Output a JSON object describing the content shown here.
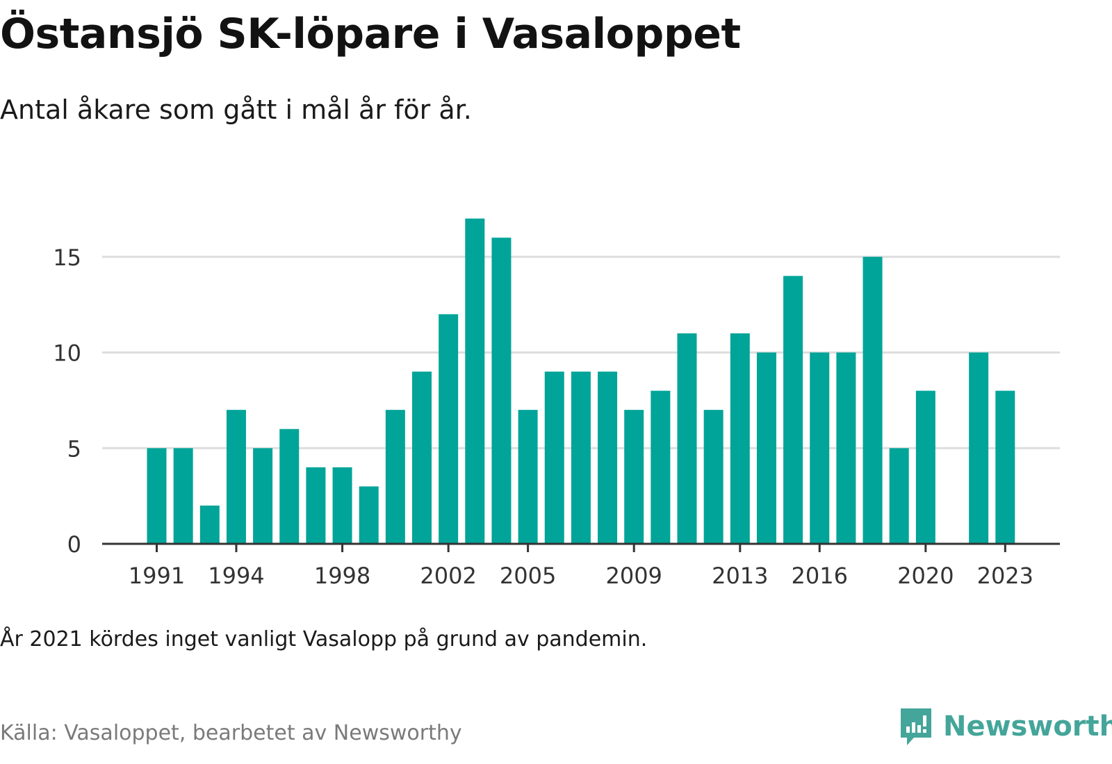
{
  "header": {
    "title": "Östansjö SK-löpare i Vasaloppet",
    "subtitle": "Antal åkare som gått i mål år för år."
  },
  "footer": {
    "note": "År 2021 kördes inget vanligt Vasalopp på grund av pandemin.",
    "source": "Källa: Vasaloppet, bearbetet av Newsworthy",
    "brand": "Newsworthy"
  },
  "colors": {
    "bar": "#00a499",
    "grid": "#dddddd",
    "axis": "#333333",
    "brand": "#44a59a"
  },
  "chart_data": {
    "type": "bar",
    "categories": [
      1991,
      1992,
      1993,
      1994,
      1995,
      1996,
      1997,
      1998,
      1999,
      2000,
      2001,
      2002,
      2003,
      2004,
      2005,
      2006,
      2007,
      2008,
      2009,
      2010,
      2011,
      2012,
      2013,
      2014,
      2015,
      2016,
      2017,
      2018,
      2019,
      2020,
      2021,
      2022,
      2023
    ],
    "values": [
      5,
      5,
      2,
      7,
      5,
      6,
      4,
      4,
      3,
      7,
      9,
      12,
      17,
      16,
      7,
      9,
      9,
      9,
      7,
      8,
      11,
      7,
      11,
      10,
      14,
      10,
      10,
      15,
      5,
      8,
      null,
      10,
      8
    ],
    "x_tick_labels": [
      "1991",
      "1994",
      "1998",
      "2002",
      "2005",
      "2009",
      "2013",
      "2016",
      "2020",
      "2023"
    ],
    "y_ticks": [
      0,
      5,
      10,
      15
    ],
    "ylim": [
      0,
      17
    ],
    "grid": true,
    "legend": "none"
  }
}
